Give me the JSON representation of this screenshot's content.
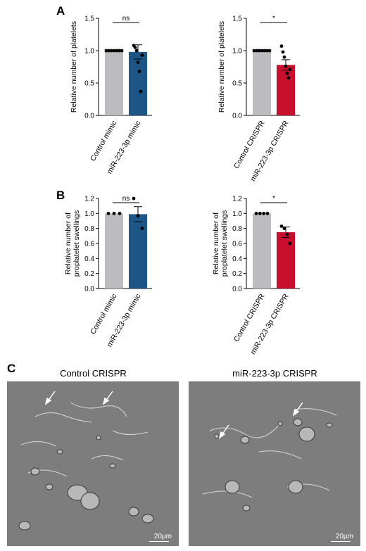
{
  "panels": {
    "a": "A",
    "b": "B",
    "c": "C"
  },
  "colors": {
    "control": "#bcbcc0",
    "mimic": "#1c5586",
    "crispr": "#c8102e",
    "micro_bg": "#7d7d7d"
  },
  "chart_data": [
    {
      "id": "A-left",
      "type": "bar",
      "ylabel": "Relative number of platelets",
      "categories": [
        "Control mimic",
        "miR-223-3p mimic"
      ],
      "values": [
        1.0,
        0.98
      ],
      "errors": [
        0,
        0.11
      ],
      "points": [
        [
          1,
          1,
          1,
          1,
          1,
          1,
          1
        ],
        [
          1.08,
          1.05,
          1.0,
          0.82,
          0.68,
          0.37,
          0.93
        ]
      ],
      "colors": [
        "#bcbcc0",
        "#1c5586"
      ],
      "ylim": [
        0,
        1.5
      ],
      "yticks": [
        "0.0",
        "0.5",
        "1.0",
        "1.5"
      ],
      "significance": "ns"
    },
    {
      "id": "A-right",
      "type": "bar",
      "ylabel": "Relative number of platelets",
      "categories": [
        "Control CRISPR",
        "miR-223-3p CRISPR"
      ],
      "values": [
        1.0,
        0.78
      ],
      "errors": [
        0,
        0.08
      ],
      "points": [
        [
          1,
          1,
          1,
          1,
          1,
          1,
          1
        ],
        [
          1.07,
          0.98,
          0.9,
          0.76,
          0.65,
          0.58,
          0.71
        ]
      ],
      "colors": [
        "#bcbcc0",
        "#c8102e"
      ],
      "ylim": [
        0,
        1.5
      ],
      "yticks": [
        "0.0",
        "0.5",
        "1.0",
        "1.5"
      ],
      "significance": "*"
    },
    {
      "id": "B-left",
      "type": "bar",
      "ylabel": [
        "Relative number of",
        "proplatelet swellings"
      ],
      "categories": [
        "Control mimic",
        "miR-223-3p mimic"
      ],
      "values": [
        1.0,
        0.99
      ],
      "errors": [
        0,
        0.1
      ],
      "points": [
        [
          1,
          1,
          1
        ],
        [
          1.2,
          0.97,
          0.8
        ]
      ],
      "colors": [
        "#bcbcc0",
        "#1c5586"
      ],
      "ylim": [
        0,
        1.2
      ],
      "yticks": [
        "0.0",
        "0.2",
        "0.4",
        "0.6",
        "0.8",
        "1.0",
        "1.2"
      ],
      "significance": "ns"
    },
    {
      "id": "B-right",
      "type": "bar",
      "ylabel": [
        "Relative number of",
        "proplatelet swellings"
      ],
      "categories": [
        "Control CRISPR",
        "miR-223-3p CRISPR"
      ],
      "values": [
        1.0,
        0.75
      ],
      "errors": [
        0,
        0.07
      ],
      "points": [
        [
          1,
          1,
          1,
          1
        ],
        [
          0.83,
          0.8,
          0.72,
          0.6
        ]
      ],
      "colors": [
        "#bcbcc0",
        "#c8102e"
      ],
      "ylim": [
        0,
        1.2
      ],
      "yticks": [
        "0.0",
        "0.2",
        "0.4",
        "0.6",
        "0.8",
        "1.0",
        "1.2"
      ],
      "significance": "*"
    }
  ],
  "micrographs": [
    {
      "title": "Control CRISPR",
      "scale": "20µm"
    },
    {
      "title": "miR-223-3p CRISPR",
      "scale": "20µm"
    }
  ]
}
